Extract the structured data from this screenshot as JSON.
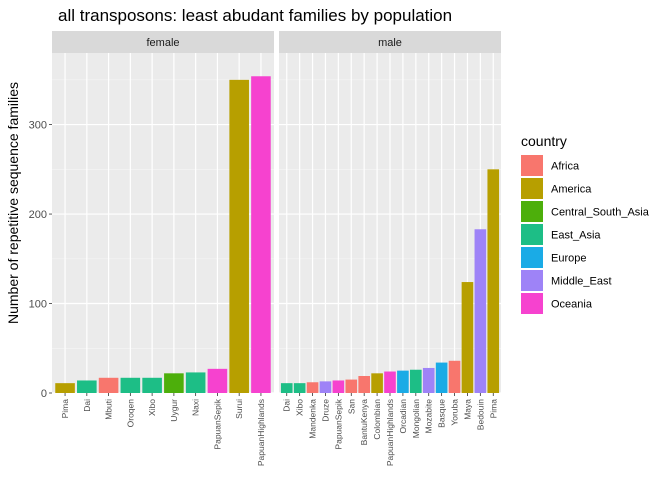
{
  "chart_data": {
    "type": "bar",
    "title": "all transposons: least abudant families by population",
    "ylabel": "Number of repetitive sequence families",
    "xlabel": "",
    "ylim": [
      0,
      380
    ],
    "y_ticks": [
      0,
      100,
      200,
      300
    ],
    "grid": true,
    "legend": {
      "title": "country",
      "position": "right",
      "entries": [
        {
          "name": "Africa",
          "color": "#F8766D"
        },
        {
          "name": "America",
          "color": "#B79F00"
        },
        {
          "name": "Central_South_Asia",
          "color": "#4DAF0B"
        },
        {
          "name": "East_Asia",
          "color": "#1DBE86"
        },
        {
          "name": "Europe",
          "color": "#1AABE6"
        },
        {
          "name": "Middle_East",
          "color": "#9E83F7"
        },
        {
          "name": "Oceania",
          "color": "#F642CF"
        }
      ]
    },
    "panels": [
      {
        "strip": "female",
        "bars": [
          {
            "category": "Pima",
            "value": 11,
            "country": "America"
          },
          {
            "category": "Dai",
            "value": 14,
            "country": "East_Asia"
          },
          {
            "category": "Mbuti",
            "value": 17,
            "country": "Africa"
          },
          {
            "category": "Oroqen",
            "value": 17,
            "country": "East_Asia"
          },
          {
            "category": "Xibo",
            "value": 17,
            "country": "East_Asia"
          },
          {
            "category": "Uygur",
            "value": 22,
            "country": "Central_South_Asia"
          },
          {
            "category": "Naxi",
            "value": 23,
            "country": "East_Asia"
          },
          {
            "category": "PapuanSepik",
            "value": 27,
            "country": "Oceania"
          },
          {
            "category": "Surui",
            "value": 350,
            "country": "America"
          },
          {
            "category": "PapuanHighlands",
            "value": 354,
            "country": "Oceania"
          }
        ]
      },
      {
        "strip": "male",
        "bars": [
          {
            "category": "Dai",
            "value": 11,
            "country": "East_Asia"
          },
          {
            "category": "Xibo",
            "value": 11,
            "country": "East_Asia"
          },
          {
            "category": "Mandenka",
            "value": 12,
            "country": "Africa"
          },
          {
            "category": "Druze",
            "value": 13,
            "country": "Middle_East"
          },
          {
            "category": "PapuanSepik",
            "value": 14,
            "country": "Oceania"
          },
          {
            "category": "San",
            "value": 15,
            "country": "Africa"
          },
          {
            "category": "BantuKenya",
            "value": 19,
            "country": "Africa"
          },
          {
            "category": "Colombian",
            "value": 22,
            "country": "America"
          },
          {
            "category": "PapuanHighlands",
            "value": 24,
            "country": "Oceania"
          },
          {
            "category": "Orcadian",
            "value": 25,
            "country": "Europe"
          },
          {
            "category": "Mongolian",
            "value": 26,
            "country": "East_Asia"
          },
          {
            "category": "Mozabite",
            "value": 28,
            "country": "Middle_East"
          },
          {
            "category": "Basque",
            "value": 34,
            "country": "Europe"
          },
          {
            "category": "Yoruba",
            "value": 36,
            "country": "Africa"
          },
          {
            "category": "Maya",
            "value": 124,
            "country": "America"
          },
          {
            "category": "Bedouin",
            "value": 183,
            "country": "Middle_East"
          },
          {
            "category": "Pima",
            "value": 250,
            "country": "America"
          }
        ]
      }
    ]
  }
}
